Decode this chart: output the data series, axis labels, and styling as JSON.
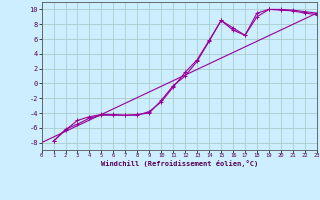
{
  "background_color": "#cceeff",
  "grid_color": "#aacccc",
  "line_color": "#990099",
  "xlim": [
    0,
    23
  ],
  "ylim": [
    -9,
    11
  ],
  "xlabel": "Windchill (Refroidissement éolien,°C)",
  "yticks": [
    -8,
    -6,
    -4,
    -2,
    0,
    2,
    4,
    6,
    8,
    10
  ],
  "xticks": [
    0,
    1,
    2,
    3,
    4,
    5,
    6,
    7,
    8,
    9,
    10,
    11,
    12,
    13,
    14,
    15,
    16,
    17,
    18,
    19,
    20,
    21,
    22,
    23
  ],
  "line1_x": [
    1,
    2,
    3,
    4,
    5,
    6,
    7,
    8,
    9,
    10,
    11,
    12,
    13,
    14,
    15,
    16,
    17,
    18,
    19,
    20,
    21,
    22,
    23
  ],
  "line1_y": [
    -7.8,
    -6.3,
    -5.0,
    -4.5,
    -4.2,
    -4.2,
    -4.3,
    -4.2,
    -4.0,
    -2.3,
    -0.3,
    1.0,
    3.0,
    5.7,
    8.5,
    7.5,
    6.5,
    9.0,
    10.0,
    10.0,
    9.9,
    9.7,
    9.5
  ],
  "line2_x": [
    1,
    2,
    3,
    4,
    5,
    6,
    7,
    8,
    9,
    10,
    11,
    12,
    13,
    14,
    15,
    16,
    17,
    18,
    19,
    20,
    21,
    22,
    23
  ],
  "line2_y": [
    -7.8,
    -6.2,
    -5.5,
    -4.7,
    -4.3,
    -4.3,
    -4.3,
    -4.3,
    -3.8,
    -2.5,
    -0.5,
    1.5,
    3.2,
    5.8,
    8.5,
    7.2,
    6.5,
    9.5,
    10.0,
    9.9,
    9.8,
    9.5,
    9.3
  ],
  "line3_x": [
    0,
    23
  ],
  "line3_y": [
    -8.0,
    9.5
  ]
}
